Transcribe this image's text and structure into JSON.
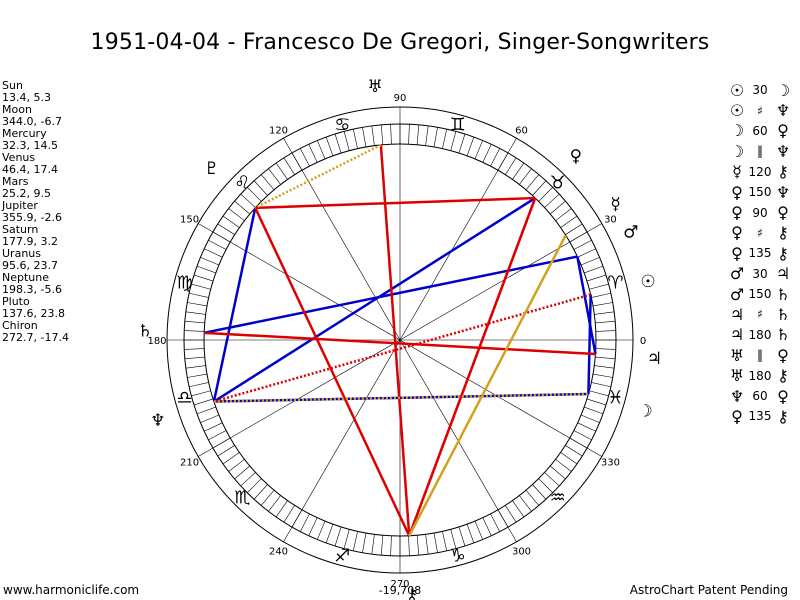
{
  "title": "1951-04-04 - Francesco De Gregori, Singer-Songwriters",
  "planets": [
    {
      "name": "Sun",
      "value": "13.4, 5.3",
      "lon": 13.4,
      "glyph": "☉",
      "color": "#000000"
    },
    {
      "name": "Moon",
      "value": "344.0, -6.7",
      "lon": 344.0,
      "glyph": "☽",
      "color": "#000000"
    },
    {
      "name": "Mercury",
      "value": "32.3, 14.5",
      "lon": 32.3,
      "glyph": "☿",
      "color": "#000000"
    },
    {
      "name": "Venus",
      "value": "46.4, 17.4",
      "lon": 46.4,
      "glyph": "♀",
      "color": "#000000"
    },
    {
      "name": "Mars",
      "value": "25.2, 9.5",
      "lon": 25.2,
      "glyph": "♂",
      "color": "#000000"
    },
    {
      "name": "Jupiter",
      "value": "355.9, -2.6",
      "lon": 355.9,
      "glyph": "♃",
      "color": "#000000"
    },
    {
      "name": "Saturn",
      "value": "177.9, 3.2",
      "lon": 177.9,
      "glyph": "♄",
      "color": "#000000"
    },
    {
      "name": "Uranus",
      "value": "95.6, 23.7",
      "lon": 95.6,
      "glyph": "♅",
      "color": "#000000"
    },
    {
      "name": "Neptune",
      "value": "198.3, -5.6",
      "lon": 198.3,
      "glyph": "♆",
      "color": "#000000"
    },
    {
      "name": "Pluto",
      "value": "137.6, 23.8",
      "lon": 137.6,
      "glyph": "♇",
      "color": "#000000"
    },
    {
      "name": "Chiron",
      "value": "272.7, -17.4",
      "lon": 272.7,
      "glyph": "⚷",
      "color": "#000000"
    }
  ],
  "aspects": [
    {
      "p1": "☉",
      "angle": "30",
      "p2": "☽"
    },
    {
      "p1": "☉",
      "angle": "♯",
      "p2": "♆"
    },
    {
      "p1": "☽",
      "angle": "60",
      "p2": "♀"
    },
    {
      "p1": "☽",
      "angle": "‖",
      "p2": "♆"
    },
    {
      "p1": "☿",
      "angle": "120",
      "p2": "⚷"
    },
    {
      "p1": "♀",
      "angle": "150",
      "p2": "♆"
    },
    {
      "p1": "♀",
      "angle": "90",
      "p2": "♀"
    },
    {
      "p1": "♀",
      "angle": "♯",
      "p2": "⚷"
    },
    {
      "p1": "♀",
      "angle": "135",
      "p2": "⚷"
    },
    {
      "p1": "♂",
      "angle": "30",
      "p2": "♃"
    },
    {
      "p1": "♂",
      "angle": "150",
      "p2": "♄"
    },
    {
      "p1": "♃",
      "angle": "♯",
      "p2": "♄"
    },
    {
      "p1": "♃",
      "angle": "180",
      "p2": "♄"
    },
    {
      "p1": "♅",
      "angle": "‖",
      "p2": "♀"
    },
    {
      "p1": "♅",
      "angle": "180",
      "p2": "⚷"
    },
    {
      "p1": "♆",
      "angle": "60",
      "p2": "♀"
    },
    {
      "p1": "♀",
      "angle": "135",
      "p2": "⚷"
    }
  ],
  "degree_labels": [
    "0",
    "30",
    "60",
    "90",
    "120",
    "150",
    "180",
    "210",
    "240",
    "270",
    "300",
    "330"
  ],
  "center_value": "-19,708",
  "zodiac_signs": [
    {
      "glyph": "♈",
      "lon": 15
    },
    {
      "glyph": "♉",
      "lon": 45
    },
    {
      "glyph": "♊",
      "lon": 75
    },
    {
      "glyph": "♋",
      "lon": 105
    },
    {
      "glyph": "♌",
      "lon": 135
    },
    {
      "glyph": "♍",
      "lon": 165
    },
    {
      "glyph": "♎",
      "lon": 195
    },
    {
      "glyph": "♏",
      "lon": 225
    },
    {
      "glyph": "♐",
      "lon": 255
    },
    {
      "glyph": "♑",
      "lon": 285
    },
    {
      "glyph": "♒",
      "lon": 315
    },
    {
      "glyph": "♓",
      "lon": 345
    }
  ],
  "aspect_lines": [
    {
      "from": 13.4,
      "to": 344.0,
      "color": "#0000cc",
      "style": "solid"
    },
    {
      "from": 344.0,
      "to": 198.3,
      "color": "#0000cc",
      "style": "solid"
    },
    {
      "from": 198.3,
      "to": 137.6,
      "color": "#0000cc",
      "style": "solid"
    },
    {
      "from": 25.2,
      "to": 177.9,
      "color": "#0000cc",
      "style": "solid"
    },
    {
      "from": 25.2,
      "to": 355.9,
      "color": "#0000cc",
      "style": "solid"
    },
    {
      "from": 46.4,
      "to": 198.3,
      "color": "#0000cc",
      "style": "solid"
    },
    {
      "from": 46.4,
      "to": 137.6,
      "color": "#dd0000",
      "style": "solid"
    },
    {
      "from": 46.4,
      "to": 272.7,
      "color": "#dd0000",
      "style": "solid"
    },
    {
      "from": 137.6,
      "to": 272.7,
      "color": "#dd0000",
      "style": "solid"
    },
    {
      "from": 95.6,
      "to": 272.7,
      "color": "#dd0000",
      "style": "solid"
    },
    {
      "from": 177.9,
      "to": 355.9,
      "color": "#dd0000",
      "style": "solid"
    },
    {
      "from": 13.4,
      "to": 198.3,
      "color": "#dd0000",
      "style": "dotted"
    },
    {
      "from": 46.4,
      "to": 272.7,
      "color": "#dd0000",
      "style": "dotted"
    },
    {
      "from": 32.3,
      "to": 272.7,
      "color": "#d4a020",
      "style": "solid"
    },
    {
      "from": 95.6,
      "to": 137.6,
      "color": "#d4a020",
      "style": "dotted"
    },
    {
      "from": 198.3,
      "to": 344.0,
      "color": "#d4a020",
      "style": "dotted"
    }
  ],
  "footer_left": "www.harmoniclife.com",
  "footer_right": "AstroChart Patent Pending"
}
